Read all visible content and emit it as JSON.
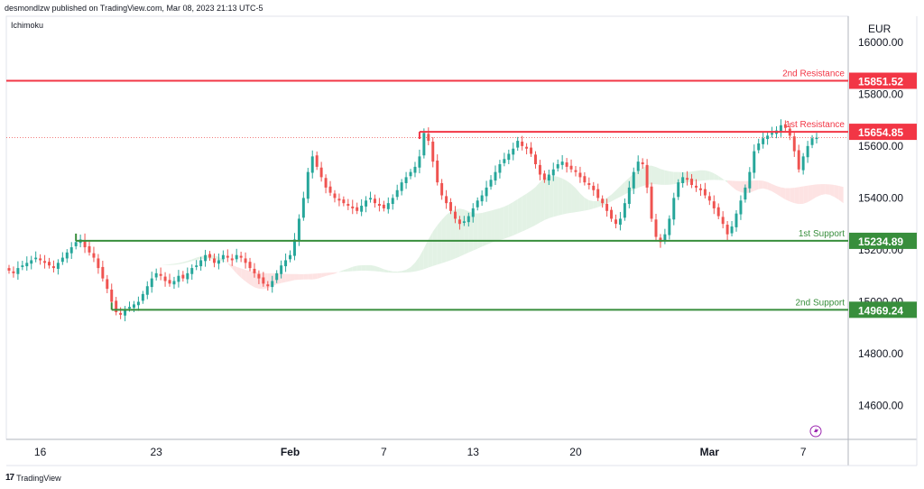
{
  "header": {
    "published": "desmondlzw published on TradingView.com, Mar 08, 2023 21:13 UTC-5",
    "indicator": "Ichimoku",
    "brand": "TradingView"
  },
  "colors": {
    "bull": "#26a69a",
    "bear": "#ef5350",
    "resistance": "#f23645",
    "support": "#388e3c",
    "cloud_bull": "#e3f2e5",
    "cloud_bear": "#fde3e3",
    "axis_text": "#131722"
  },
  "chart_data": {
    "type": "candlestick",
    "currency": "EUR",
    "y_range": [
      14470,
      16100
    ],
    "y_ticks": [
      {
        "value": 16000,
        "label": "16000.00"
      },
      {
        "value": 15800,
        "label": "15800.00"
      },
      {
        "value": 15600,
        "label": "15600.00"
      },
      {
        "value": 15400,
        "label": "15400.00"
      },
      {
        "value": 15200,
        "label": "15200.00"
      },
      {
        "value": 15000,
        "label": "15000.00"
      },
      {
        "value": 14800,
        "label": "14800.00"
      },
      {
        "value": 14600,
        "label": "14600.00"
      }
    ],
    "x_ticks": [
      {
        "label": "16",
        "index": 7
      },
      {
        "label": "23",
        "index": 33
      },
      {
        "label": "Feb",
        "index": 63,
        "bold": true
      },
      {
        "label": "7",
        "index": 84
      },
      {
        "label": "13",
        "index": 104
      },
      {
        "label": "20",
        "index": 127
      },
      {
        "label": "Mar",
        "index": 157,
        "bold": true
      },
      {
        "label": "7",
        "index": 178
      }
    ],
    "levels": [
      {
        "name": "2nd Resistance",
        "value": 15851.52,
        "label": "15851.52",
        "kind": "resistance",
        "from_index": 0
      },
      {
        "name": "1st Resistance",
        "value": 15654.85,
        "label": "15654.85",
        "kind": "resistance",
        "from_index": 92
      },
      {
        "name": "1st Support",
        "value": 15234.89,
        "label": "15234.89",
        "kind": "support",
        "from_index": 15
      },
      {
        "name": "2nd Support",
        "value": 14969.24,
        "label": "14969.24",
        "kind": "support",
        "from_index": 23
      }
    ],
    "last_price": 15632,
    "closes": [
      15120,
      15110,
      15130,
      15140,
      15150,
      15160,
      15170,
      15160,
      15150,
      15140,
      15130,
      15150,
      15170,
      15190,
      15210,
      15230,
      15240,
      15210,
      15190,
      15170,
      15130,
      15090,
      15050,
      15000,
      14960,
      14950,
      14970,
      14980,
      14990,
      15000,
      15030,
      15060,
      15090,
      15110,
      15100,
      15080,
      15070,
      15080,
      15100,
      15090,
      15110,
      15130,
      15140,
      15160,
      15180,
      15170,
      15150,
      15160,
      15180,
      15170,
      15160,
      15180,
      15170,
      15150,
      15130,
      15110,
      15090,
      15070,
      15060,
      15080,
      15110,
      15140,
      15160,
      15180,
      15240,
      15320,
      15400,
      15500,
      15560,
      15520,
      15480,
      15440,
      15420,
      15400,
      15390,
      15380,
      15370,
      15360,
      15350,
      15370,
      15390,
      15400,
      15380,
      15370,
      15360,
      15380,
      15400,
      15430,
      15460,
      15480,
      15500,
      15520,
      15560,
      15650,
      15620,
      15540,
      15460,
      15410,
      15380,
      15350,
      15320,
      15300,
      15310,
      15330,
      15360,
      15390,
      15410,
      15440,
      15470,
      15500,
      15530,
      15550,
      15570,
      15590,
      15620,
      15600,
      15590,
      15570,
      15530,
      15490,
      15470,
      15490,
      15510,
      15530,
      15540,
      15520,
      15510,
      15500,
      15480,
      15460,
      15450,
      15430,
      15400,
      15380,
      15350,
      15320,
      15300,
      15320,
      15380,
      15440,
      15500,
      15540,
      15530,
      15440,
      15320,
      15250,
      15230,
      15260,
      15320,
      15400,
      15460,
      15480,
      15470,
      15450,
      15440,
      15430,
      15410,
      15390,
      15360,
      15330,
      15300,
      15260,
      15290,
      15340,
      15390,
      15440,
      15500,
      15580,
      15610,
      15630,
      15640,
      15650,
      15660,
      15680,
      15670,
      15640,
      15580,
      15510,
      15560,
      15600,
      15630,
      15632
    ]
  }
}
